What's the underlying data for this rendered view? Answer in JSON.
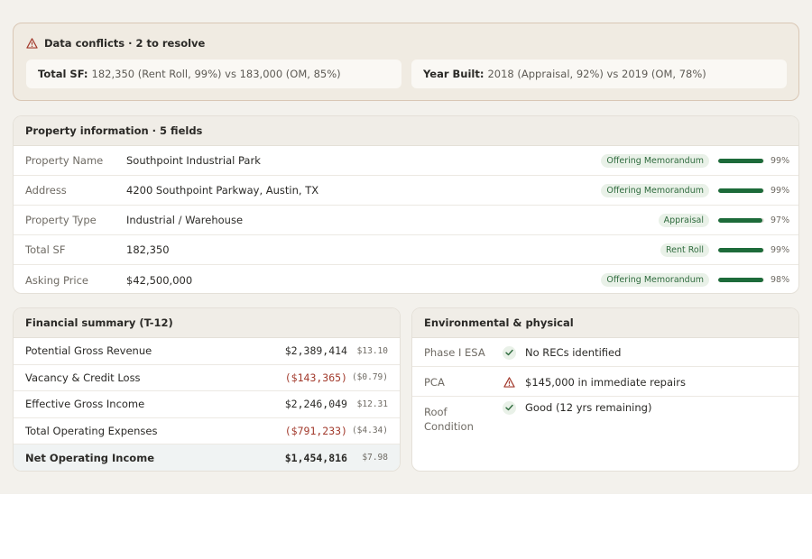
{
  "conflicts": {
    "title": "Data conflicts · 2 to resolve",
    "items": [
      {
        "field": "Total SF:",
        "detail": "182,350 (Rent Roll, 99%) vs 183,000 (OM, 85%)"
      },
      {
        "field": "Year Built:",
        "detail": "2018 (Appraisal, 92%) vs 2019 (OM, 78%)"
      }
    ]
  },
  "property": {
    "title": "Property information · 5 fields",
    "rows": [
      {
        "label": "Property Name",
        "value": "Southpoint Industrial Park",
        "source": "Offering Memorandum",
        "confidence": 0.99,
        "pct": "99%"
      },
      {
        "label": "Address",
        "value": "4200 Southpoint Parkway, Austin, TX",
        "source": "Offering Memorandum",
        "confidence": 0.99,
        "pct": "99%"
      },
      {
        "label": "Property Type",
        "value": "Industrial / Warehouse",
        "source": "Appraisal",
        "confidence": 0.97,
        "pct": "97%"
      },
      {
        "label": "Total SF",
        "value": "182,350",
        "source": "Rent Roll",
        "confidence": 0.99,
        "pct": "99%"
      },
      {
        "label": "Asking Price",
        "value": "$42,500,000",
        "source": "Offering Memorandum",
        "confidence": 0.98,
        "pct": "98%"
      }
    ]
  },
  "financial": {
    "title": "Financial summary (T-12)",
    "rows": [
      {
        "label": "Potential Gross Revenue",
        "amount": "$2,389,414",
        "psf": "$13.10",
        "negative": false
      },
      {
        "label": "Vacancy & Credit Loss",
        "amount": "($143,365)",
        "psf": "($0.79)",
        "negative": true
      },
      {
        "label": "Effective Gross Income",
        "amount": "$2,246,049",
        "psf": "$12.31",
        "negative": false
      },
      {
        "label": "Total Operating Expenses",
        "amount": "($791,233)",
        "psf": "($4.34)",
        "negative": true
      },
      {
        "label": "Net Operating Income",
        "amount": "$1,454,816",
        "psf": "$7.98",
        "negative": false
      }
    ]
  },
  "environmental": {
    "title": "Environmental & physical",
    "rows": [
      {
        "label": "Phase I ESA",
        "status": "ok",
        "value": "No RECs identified"
      },
      {
        "label": "PCA",
        "status": "warning",
        "value": "$145,000 in immediate repairs"
      },
      {
        "label": "Roof Condition",
        "status": "ok",
        "value": "Good (12 yrs remaining)"
      }
    ]
  },
  "colors": {
    "positive": "#1d6b3a",
    "negative": "#a23a2c",
    "warning": "#a23a2c",
    "badge_bg": "#e9f1e8"
  }
}
